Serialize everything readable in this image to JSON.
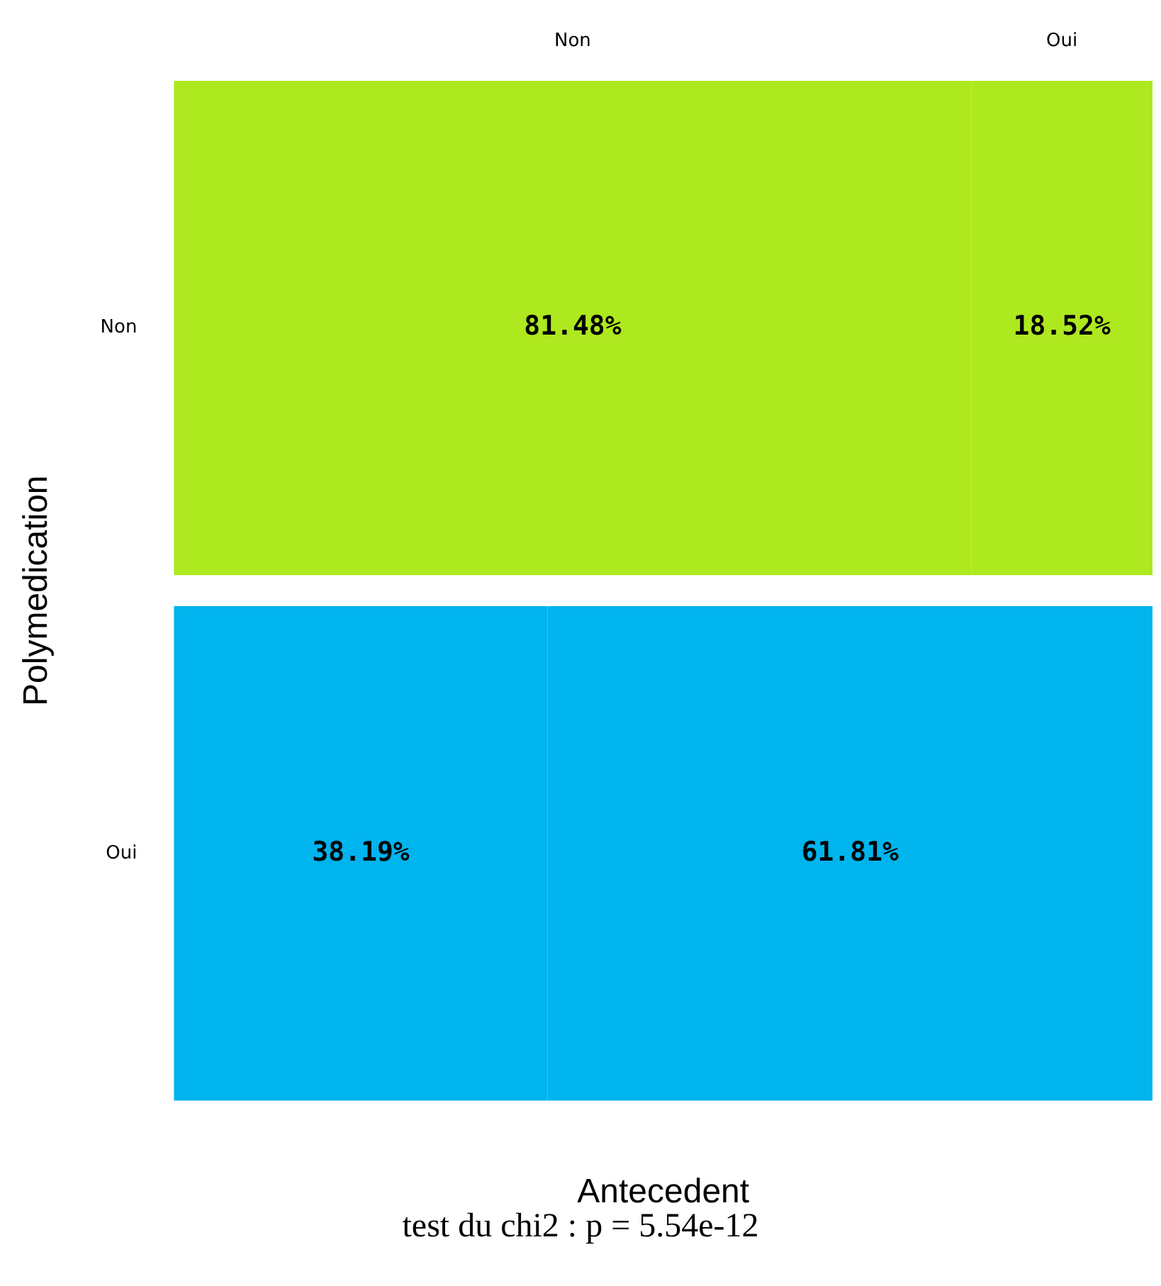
{
  "chart_data": {
    "type": "bar",
    "orientation": "horizontal",
    "stacked": true,
    "xlabel": "Antecedent",
    "ylabel": "Polymedication",
    "categories": [
      "Non",
      "Oui"
    ],
    "series": [
      {
        "name": "Non",
        "colors": [
          "#aee81e",
          "#00b4ee"
        ],
        "values": [
          81.48,
          38.19
        ],
        "value_labels": [
          "81.48%",
          "38.19%"
        ]
      },
      {
        "name": "Oui",
        "colors": [
          "#aee81e",
          "#00b4ee"
        ],
        "values": [
          18.52,
          61.81
        ],
        "value_labels": [
          "18.52%",
          "61.81%"
        ]
      }
    ],
    "xlim": [
      0,
      100
    ],
    "tick_labels": "y",
    "grid": false,
    "legend": false,
    "annotations": [
      "test du chi2 : p = 5.54e-12"
    ]
  }
}
